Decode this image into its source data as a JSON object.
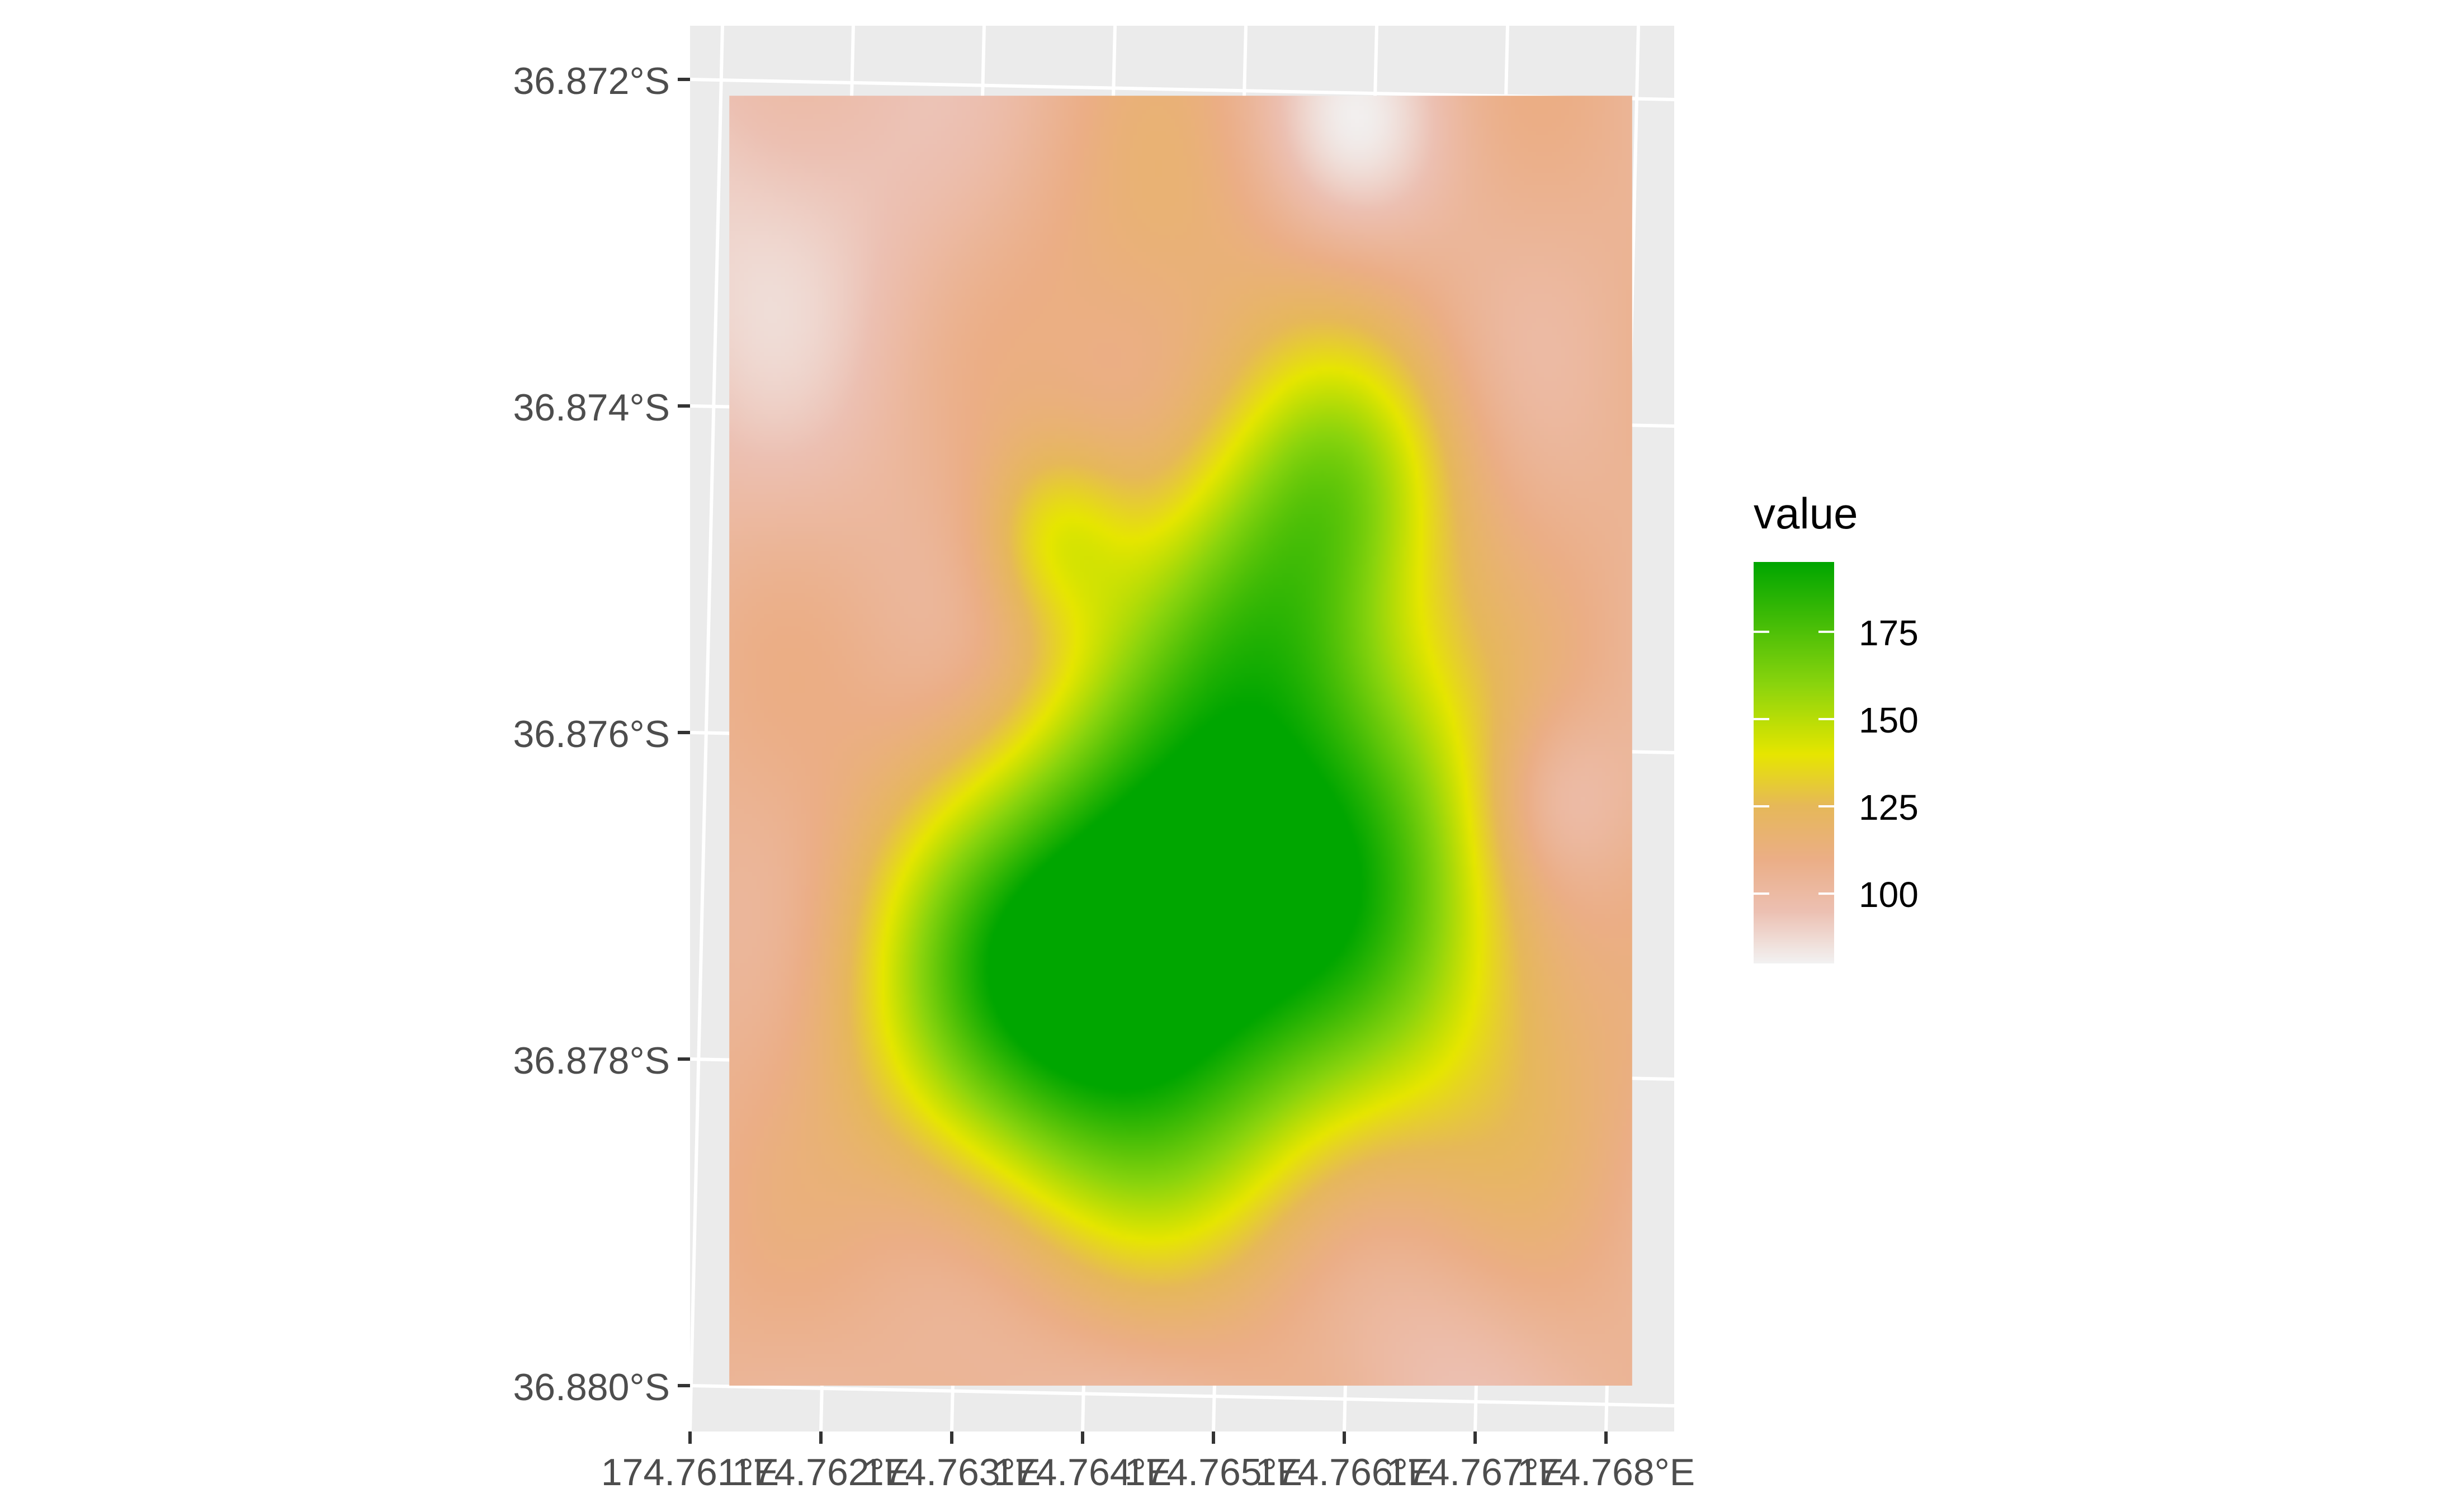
{
  "chart_data": {
    "type": "heatmap",
    "title": "",
    "xlabel": "",
    "ylabel": "",
    "grid": true,
    "x_ticks": [
      "174.761°E",
      "174.762°E",
      "174.763°E",
      "174.764°E",
      "174.765°E",
      "174.766°E",
      "174.767°E",
      "174.768°E"
    ],
    "x_tick_values": [
      174.761,
      174.762,
      174.763,
      174.764,
      174.765,
      174.766,
      174.767,
      174.768
    ],
    "y_ticks": [
      "36.872°S",
      "36.874°S",
      "36.876°S",
      "36.878°S",
      "36.880°S"
    ],
    "y_tick_values": [
      -36.872,
      -36.874,
      -36.876,
      -36.878,
      -36.88
    ],
    "xlim": [
      174.761,
      174.768
    ],
    "ylim": [
      -36.88,
      -36.872
    ],
    "extent": {
      "lon": [
        174.7613,
        174.7682
      ],
      "lat": [
        -36.88,
        -36.8721
      ]
    },
    "legend": {
      "title": "value",
      "position": "right",
      "ticks": [
        "175",
        "150",
        "125",
        "100"
      ],
      "tick_values": [
        175,
        150,
        125,
        100
      ],
      "range": [
        80,
        195
      ]
    },
    "colorscale": [
      {
        "value": 80,
        "color": "#f2f2f2"
      },
      {
        "value": 95,
        "color": "#ecc0b2"
      },
      {
        "value": 110,
        "color": "#ebae86"
      },
      {
        "value": 125,
        "color": "#e6b85a"
      },
      {
        "value": 140,
        "color": "#e6e600"
      },
      {
        "value": 160,
        "color": "#8ad40d"
      },
      {
        "value": 195,
        "color": "#00a600"
      }
    ],
    "surface": {
      "base": 105,
      "features": [
        {
          "lon": 174.7645,
          "lat": -36.8778,
          "sigma": 0.001,
          "amplitude": 72
        },
        {
          "lon": 174.7643,
          "lat": -36.877,
          "sigma": 0.00075,
          "amplitude": 22
        },
        {
          "lon": 174.765,
          "lat": -36.8763,
          "sigma": 0.0009,
          "amplitude": 48
        },
        {
          "lon": 174.7655,
          "lat": -36.8752,
          "sigma": 0.0007,
          "amplitude": 42
        },
        {
          "lon": 174.766,
          "lat": -36.8744,
          "sigma": 0.0006,
          "amplitude": 38
        },
        {
          "lon": 174.7638,
          "lat": -36.8748,
          "sigma": 0.0004,
          "amplitude": 28
        },
        {
          "lon": 174.7633,
          "lat": -36.8775,
          "sigma": 0.0008,
          "amplitude": 42
        },
        {
          "lon": 174.7662,
          "lat": -36.8772,
          "sigma": 0.0008,
          "amplitude": 40
        },
        {
          "lon": 174.7663,
          "lat": -36.8762,
          "sigma": 0.0007,
          "amplitude": 22
        },
        {
          "lon": 174.7672,
          "lat": -36.878,
          "sigma": 0.0008,
          "amplitude": 12
        },
        {
          "lon": 174.7646,
          "lat": -36.8732,
          "sigma": 0.0008,
          "amplitude": 12
        },
        {
          "lon": 174.7614,
          "lat": -36.8728,
          "sigma": 0.0012,
          "amplitude": -16
        },
        {
          "lon": 174.7661,
          "lat": -36.8723,
          "sigma": 0.0005,
          "amplitude": -20
        },
        {
          "lon": 174.7676,
          "lat": -36.8764,
          "sigma": 0.0004,
          "amplitude": -14
        },
        {
          "lon": 174.764,
          "lat": -36.88,
          "sigma": 0.0009,
          "amplitude": -8
        },
        {
          "lon": 174.7668,
          "lat": -36.88,
          "sigma": 0.0006,
          "amplitude": -10
        }
      ]
    }
  }
}
